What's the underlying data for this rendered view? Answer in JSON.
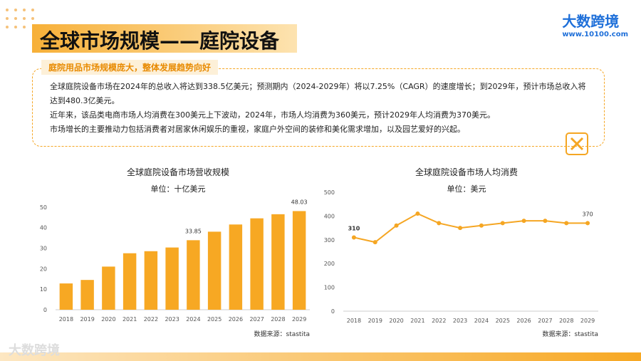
{
  "header": {
    "title": "全球市场规模——庭院设备",
    "logo_name": "大数跨境",
    "logo_url": "www.10100.com"
  },
  "summary": {
    "title": "庭院用品市场规模庞大，整体发展趋势向好",
    "paragraphs": [
      "全球庭院设备市场在2024年的总收入将达到338.5亿美元；预测期内（2024-2029年）将以7.25%（CAGR）的速度增长；到2029年，预计市场总收入将达到480.3亿美元。",
      "近年来，该品类电商市场人均消费在300美元上下波动，2024年，市场人均消费为360美元，预计2029年人均消费为370美元。",
      "市场增长的主要推动力包括消费者对居家休闲娱乐的重视，家庭户外空间的装修和美化需求增加，以及园艺爱好的兴起。"
    ]
  },
  "chart_data": [
    {
      "type": "bar",
      "title": "全球庭院设备市场营收规模",
      "subtitle": "单位：十亿美元",
      "source": "数据来源：stastita",
      "categories": [
        "2018",
        "2019",
        "2020",
        "2021",
        "2022",
        "2023",
        "2024",
        "2025",
        "2026",
        "2027",
        "2028",
        "2029"
      ],
      "values": [
        12.8,
        14.5,
        21,
        27.5,
        28.5,
        30.3,
        33.85,
        38,
        41.5,
        44.5,
        46.5,
        48.03
      ],
      "value_labels": [
        null,
        null,
        null,
        null,
        null,
        null,
        "33.85",
        null,
        null,
        null,
        null,
        "48.03"
      ],
      "color": "#f7a823",
      "ylim": [
        0,
        52
      ],
      "yticks": [
        0,
        10,
        20,
        30,
        40,
        50
      ],
      "grid": false
    },
    {
      "type": "line",
      "title": "全球庭院设备市场人均消费",
      "subtitle": "单位：美元",
      "source": "数据来源：stastita",
      "categories": [
        "2018",
        "2019",
        "2020",
        "2021",
        "2022",
        "2023",
        "2024",
        "2025",
        "2026",
        "2027",
        "2028",
        "2029"
      ],
      "values": [
        310,
        290,
        360,
        410,
        370,
        350,
        360,
        370,
        380,
        380,
        370,
        370
      ],
      "value_labels": [
        "310",
        null,
        null,
        null,
        null,
        null,
        null,
        null,
        null,
        null,
        null,
        "370"
      ],
      "color": "#f5a623",
      "ylim": [
        0,
        500
      ],
      "yticks": [
        0,
        100,
        200,
        300,
        400,
        500
      ],
      "grid": false
    }
  ],
  "watermark": "大数跨境"
}
